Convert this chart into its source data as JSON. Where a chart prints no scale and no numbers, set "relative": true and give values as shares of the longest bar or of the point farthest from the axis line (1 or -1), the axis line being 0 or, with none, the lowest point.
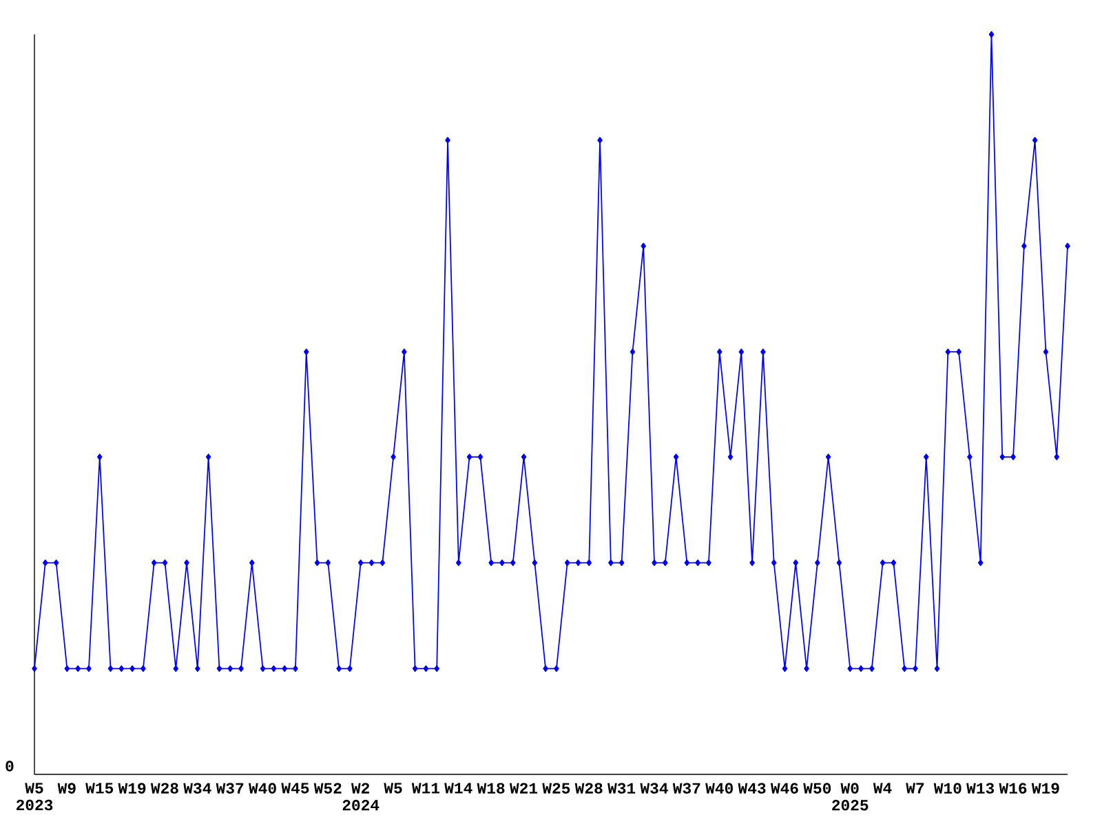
{
  "chart_data": {
    "type": "line",
    "relative": true,
    "categories": [
      "W5 2023",
      null,
      null,
      "W9",
      null,
      null,
      "W15",
      null,
      null,
      "W19",
      null,
      null,
      "W28",
      null,
      null,
      "W34",
      null,
      null,
      "W37",
      null,
      null,
      "W40",
      null,
      null,
      "W45",
      null,
      null,
      "W52",
      null,
      null,
      "W2 2024",
      null,
      null,
      "W5",
      null,
      null,
      "W11",
      null,
      null,
      "W14",
      null,
      null,
      "W18",
      null,
      null,
      "W21",
      null,
      null,
      "W25",
      null,
      null,
      "W28",
      null,
      null,
      "W31",
      null,
      null,
      "W34",
      null,
      null,
      "W37",
      null,
      null,
      "W40",
      null,
      null,
      "W43",
      null,
      null,
      "W46",
      null,
      null,
      "W50",
      null,
      null,
      "W0 2025",
      null,
      null,
      "W4",
      null,
      null,
      "W7",
      null,
      null,
      "W10",
      null,
      null,
      "W13",
      null,
      null,
      "W16",
      null,
      null,
      "W19",
      null,
      null
    ],
    "series": [
      {
        "color": "#0000ff",
        "values": [
          0.143,
          0.286,
          0.286,
          0.143,
          0.143,
          0.143,
          0.429,
          0.143,
          0.143,
          0.143,
          0.143,
          0.286,
          0.286,
          0.143,
          0.286,
          0.143,
          0.429,
          0.143,
          0.143,
          0.143,
          0.286,
          0.143,
          0.143,
          0.143,
          0.143,
          0.571,
          0.286,
          0.286,
          0.143,
          0.143,
          0.286,
          0.286,
          0.286,
          0.429,
          0.571,
          0.143,
          0.143,
          0.143,
          0.857,
          0.286,
          0.429,
          0.429,
          0.286,
          0.286,
          0.286,
          0.429,
          0.286,
          0.143,
          0.143,
          0.286,
          0.286,
          0.286,
          0.857,
          0.286,
          0.286,
          0.571,
          0.714,
          0.286,
          0.286,
          0.429,
          0.286,
          0.286,
          0.286,
          0.571,
          0.429,
          0.571,
          0.286,
          0.571,
          0.286,
          0.143,
          0.286,
          0.143,
          0.286,
          0.429,
          0.286,
          0.143,
          0.143,
          0.143,
          0.286,
          0.286,
          0.143,
          0.143,
          0.429,
          0.143,
          0.571,
          0.571,
          0.429,
          0.286,
          1,
          0.429,
          0.429,
          0.714,
          0.857,
          0.571,
          0.429,
          0.714
        ]
      }
    ],
    "marker": "diamond",
    "line_style": "solid",
    "annotations": [
      "0"
    ]
  }
}
